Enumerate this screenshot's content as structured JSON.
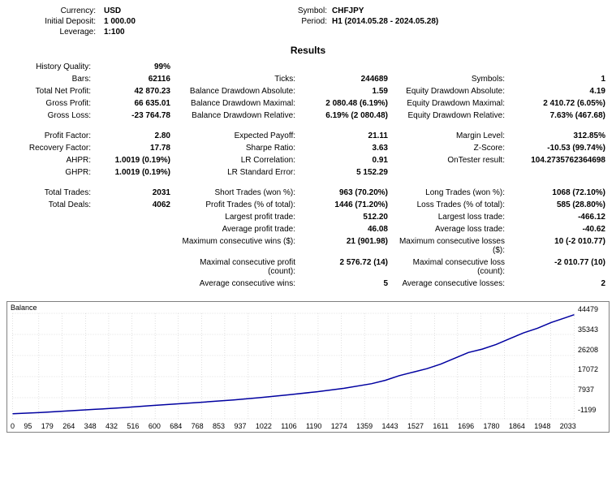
{
  "header": {
    "currency_label": "Currency:",
    "currency_value": "USD",
    "deposit_label": "Initial Deposit:",
    "deposit_value": "1 000.00",
    "leverage_label": "Leverage:",
    "leverage_value": "1:100",
    "symbol_label": "Symbol:",
    "symbol_value": "CHFJPY",
    "period_label": "Period:",
    "period_value": "H1 (2014.05.28 - 2024.05.28)"
  },
  "results_title": "Results",
  "rows": [
    [
      {
        "l": "History Quality:",
        "v": "99%"
      },
      null,
      null
    ],
    [
      {
        "l": "Bars:",
        "v": "62116"
      },
      {
        "l": "Ticks:",
        "v": "244689"
      },
      {
        "l": "Symbols:",
        "v": "1"
      }
    ],
    [
      {
        "l": "Total Net Profit:",
        "v": "42 870.23"
      },
      {
        "l": "Balance Drawdown Absolute:",
        "v": "1.59"
      },
      {
        "l": "Equity Drawdown Absolute:",
        "v": "4.19"
      }
    ],
    [
      {
        "l": "Gross Profit:",
        "v": "66 635.01"
      },
      {
        "l": "Balance Drawdown Maximal:",
        "v": "2 080.48 (6.19%)"
      },
      {
        "l": "Equity Drawdown Maximal:",
        "v": "2 410.72 (6.05%)"
      }
    ],
    [
      {
        "l": "Gross Loss:",
        "v": "-23 764.78"
      },
      {
        "l": "Balance Drawdown Relative:",
        "v": "6.19% (2 080.48)"
      },
      {
        "l": "Equity Drawdown Relative:",
        "v": "7.63% (467.68)"
      }
    ],
    "gap",
    [
      {
        "l": "Profit Factor:",
        "v": "2.80"
      },
      {
        "l": "Expected Payoff:",
        "v": "21.11"
      },
      {
        "l": "Margin Level:",
        "v": "312.85%"
      }
    ],
    [
      {
        "l": "Recovery Factor:",
        "v": "17.78"
      },
      {
        "l": "Sharpe Ratio:",
        "v": "3.63"
      },
      {
        "l": "Z-Score:",
        "v": "-10.53 (99.74%)"
      }
    ],
    [
      {
        "l": "AHPR:",
        "v": "1.0019 (0.19%)"
      },
      {
        "l": "LR Correlation:",
        "v": "0.91"
      },
      {
        "l": "OnTester result:",
        "v": "104.2735762364698"
      }
    ],
    [
      {
        "l": "GHPR:",
        "v": "1.0019 (0.19%)"
      },
      {
        "l": "LR Standard Error:",
        "v": "5 152.29"
      },
      null
    ],
    "gap",
    [
      {
        "l": "Total Trades:",
        "v": "2031"
      },
      {
        "l": "Short Trades (won %):",
        "v": "963 (70.20%)"
      },
      {
        "l": "Long Trades (won %):",
        "v": "1068 (72.10%)"
      }
    ],
    [
      {
        "l": "Total Deals:",
        "v": "4062"
      },
      {
        "l": "Profit Trades (% of total):",
        "v": "1446 (71.20%)"
      },
      {
        "l": "Loss Trades (% of total):",
        "v": "585 (28.80%)"
      }
    ],
    [
      null,
      {
        "l": "Largest profit trade:",
        "v": "512.20"
      },
      {
        "l": "Largest loss trade:",
        "v": "-466.12"
      }
    ],
    [
      null,
      {
        "l": "Average profit trade:",
        "v": "46.08"
      },
      {
        "l": "Average loss trade:",
        "v": "-40.62"
      }
    ],
    [
      null,
      {
        "l": "Maximum consecutive wins ($):",
        "v": "21 (901.98)"
      },
      {
        "l": "Maximum consecutive losses ($):",
        "v": "10 (-2 010.77)"
      }
    ],
    [
      null,
      {
        "l": "Maximal consecutive profit (count):",
        "v": "2 576.72 (14)"
      },
      {
        "l": "Maximal consecutive loss (count):",
        "v": "-2 010.77 (10)"
      }
    ],
    [
      null,
      {
        "l": "Average consecutive wins:",
        "v": "5"
      },
      {
        "l": "Average consecutive losses:",
        "v": "2"
      }
    ]
  ],
  "chart": {
    "type": "line",
    "title": "Balance",
    "line_color": "#0000a0",
    "grid_color": "#c0c0c0",
    "background_color": "#ffffff",
    "border_color": "#808080",
    "ylim": [
      -1199,
      44479
    ],
    "y_labels": [
      "44479",
      "35343",
      "26208",
      "17072",
      "7937",
      "-1199"
    ],
    "x_labels": [
      "0",
      "95",
      "179",
      "264",
      "348",
      "432",
      "516",
      "600",
      "684",
      "768",
      "853",
      "937",
      "1022",
      "1106",
      "1190",
      "1274",
      "1359",
      "1443",
      "1527",
      "1611",
      "1696",
      "1780",
      "1864",
      "1948",
      "2033"
    ],
    "series": [
      {
        "x": 0,
        "y": 1000
      },
      {
        "x": 100,
        "y": 1500
      },
      {
        "x": 200,
        "y": 2200
      },
      {
        "x": 300,
        "y": 2900
      },
      {
        "x": 400,
        "y": 3600
      },
      {
        "x": 500,
        "y": 4500
      },
      {
        "x": 600,
        "y": 5300
      },
      {
        "x": 700,
        "y": 6100
      },
      {
        "x": 800,
        "y": 7000
      },
      {
        "x": 900,
        "y": 8000
      },
      {
        "x": 1000,
        "y": 9200
      },
      {
        "x": 1100,
        "y": 10500
      },
      {
        "x": 1200,
        "y": 12000
      },
      {
        "x": 1300,
        "y": 14000
      },
      {
        "x": 1350,
        "y": 15500
      },
      {
        "x": 1400,
        "y": 17500
      },
      {
        "x": 1450,
        "y": 19000
      },
      {
        "x": 1500,
        "y": 20500
      },
      {
        "x": 1550,
        "y": 22500
      },
      {
        "x": 1600,
        "y": 25000
      },
      {
        "x": 1650,
        "y": 27500
      },
      {
        "x": 1700,
        "y": 29000
      },
      {
        "x": 1750,
        "y": 31000
      },
      {
        "x": 1800,
        "y": 33500
      },
      {
        "x": 1850,
        "y": 36000
      },
      {
        "x": 1900,
        "y": 38000
      },
      {
        "x": 1950,
        "y": 40500
      },
      {
        "x": 2000,
        "y": 42500
      },
      {
        "x": 2033,
        "y": 43870
      }
    ],
    "line_width": 1.5
  }
}
